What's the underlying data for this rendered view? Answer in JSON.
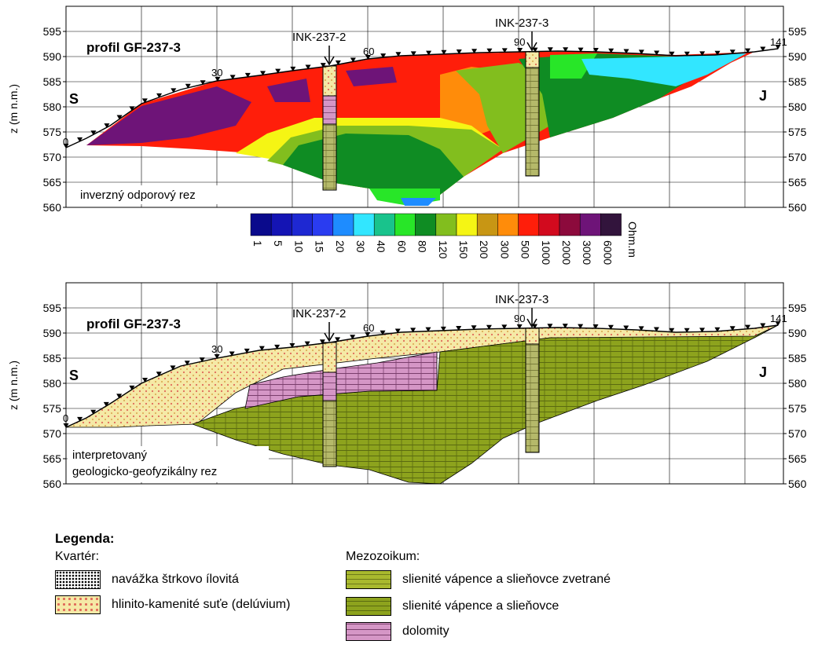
{
  "profile_title": "profil GF-237-3",
  "direction_left": "S",
  "direction_right": "J",
  "y_axis_label": "z (m n.m.)",
  "y_ticks": [
    "595",
    "590",
    "585",
    "580",
    "575",
    "570",
    "565",
    "560"
  ],
  "station_labels": [
    "0",
    "30",
    "60",
    "90",
    "141"
  ],
  "boreholes": [
    "INK-237-2",
    "INK-237-3"
  ],
  "top_panel_caption": "inverzný odporový rez",
  "bottom_panel_caption_line1": "interpretovaný",
  "bottom_panel_caption_line2": "geologicko-geofyzikálny rez",
  "color_scale": {
    "unit": "Ohm.m",
    "labels": [
      "1",
      "5",
      "10",
      "15",
      "20",
      "30",
      "40",
      "60",
      "80",
      "120",
      "150",
      "200",
      "300",
      "500",
      "1000",
      "2000",
      "3000",
      "6000"
    ],
    "colors": [
      "#0a0a8c",
      "#1414b4",
      "#1e28d2",
      "#2a3cf0",
      "#1e8cff",
      "#32e6ff",
      "#19c38c",
      "#28e628",
      "#0f8c23",
      "#82be1e",
      "#f5f514",
      "#c89614",
      "#ff8c0a",
      "#ff1e0a",
      "#d20a1e",
      "#8c0a3c",
      "#6e1478",
      "#32143c"
    ]
  },
  "legend": {
    "heading": "Legenda:",
    "kvarter_label": "Kvartér:",
    "mezozoikum_label": "Mezozoikum:",
    "items_kvarter": [
      "navážka štrkovo ílovitá",
      "hlinito-kamenité suťe (delúvium)"
    ],
    "items_mezozoikum": [
      "slienité vápence a slieňovce zvetrané",
      "slienité vápence a slieňovce",
      "dolomity"
    ]
  }
}
